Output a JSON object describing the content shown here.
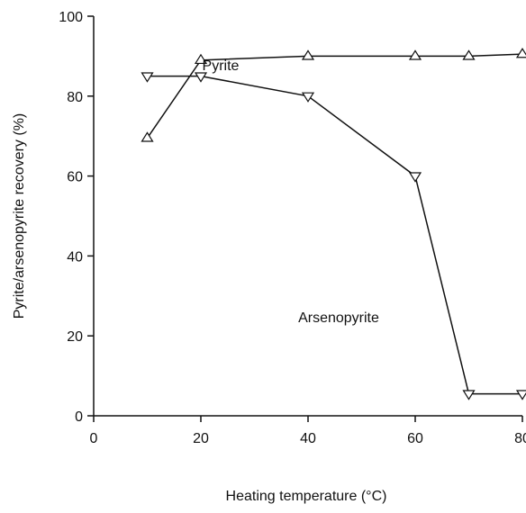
{
  "chart_data": {
    "type": "line",
    "x_label": "Heating temperature (°C)",
    "y_label": "Pyrite/arsenopyrite recovery (%)",
    "xlim": [
      0,
      80
    ],
    "xticks": [
      0,
      20,
      40,
      60,
      80
    ],
    "ylim": [
      0,
      100
    ],
    "yticks": [
      0,
      20,
      40,
      60,
      80,
      100
    ],
    "x": [
      10,
      20,
      40,
      60,
      70,
      80
    ],
    "series": [
      {
        "name": "Pyrite",
        "color": "#111111",
        "marker": "triangle-up",
        "values": [
          69.5,
          89,
          90,
          90,
          90,
          90.5
        ]
      },
      {
        "name": "Arsenopyrite",
        "color": "#111111",
        "marker": "triangle-down",
        "values": [
          85,
          85,
          80,
          60,
          5.5,
          5.5
        ]
      }
    ]
  }
}
